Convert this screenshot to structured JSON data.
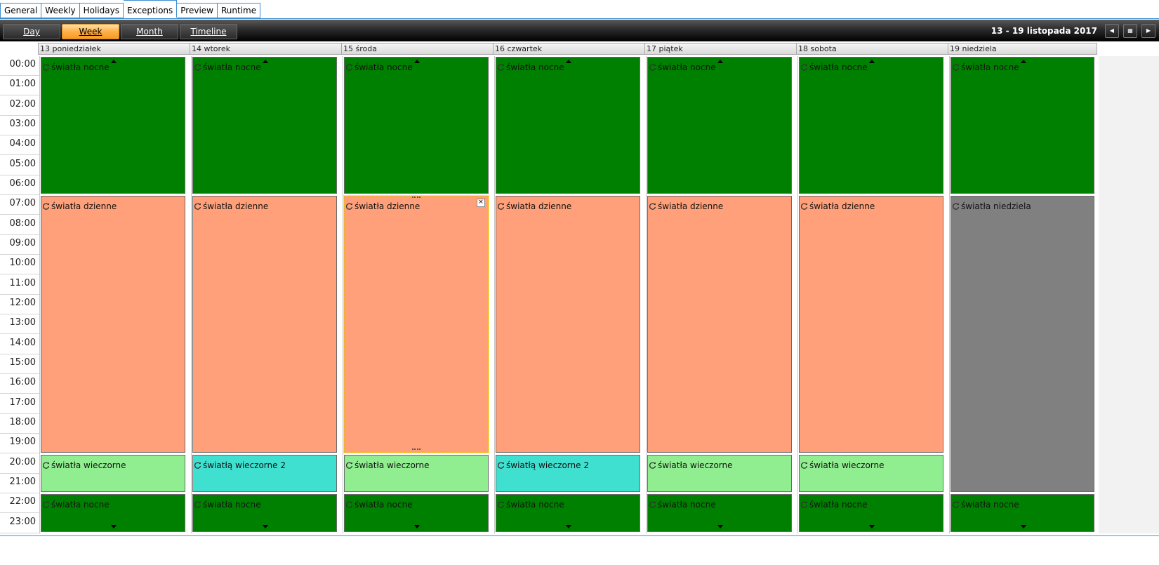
{
  "tabs": [
    "General",
    "Weekly",
    "Holidays",
    "Exceptions",
    "Preview",
    "Runtime"
  ],
  "active_tab": "Exceptions",
  "views": [
    "Day",
    "Week",
    "Month",
    "Timeline"
  ],
  "active_view": "Week",
  "date_range": "13  - 19 listopada 2017",
  "nav": {
    "prev_icon": "triangle-left-icon",
    "calendar_icon": "calendar-grid-icon",
    "next_icon": "triangle-right-icon"
  },
  "hours": [
    "00:00",
    "01:00",
    "02:00",
    "03:00",
    "04:00",
    "05:00",
    "06:00",
    "07:00",
    "08:00",
    "09:00",
    "10:00",
    "11:00",
    "12:00",
    "13:00",
    "14:00",
    "15:00",
    "16:00",
    "17:00",
    "18:00",
    "19:00",
    "20:00",
    "21:00",
    "22:00",
    "23:00"
  ],
  "days": [
    "13 poniedziałek",
    "14 wtorek",
    "15 środa",
    "16 czwartek",
    "17 piątek",
    "18 sobota",
    "19 niedziela"
  ],
  "colors": {
    "night": "#008000",
    "day": "#ffa07a",
    "evening": "#90ee90",
    "evening2": "#40e0d0",
    "sunday": "#808080",
    "toolbar_active": "#ffb04a",
    "tab_border": "#3c8fd1"
  },
  "appointments": [
    {
      "day": 0,
      "start": 0,
      "end": 7,
      "title": "światła nocne",
      "color": "night",
      "cont_up": true
    },
    {
      "day": 0,
      "start": 7,
      "end": 20,
      "title": "światła dzienne",
      "color": "day"
    },
    {
      "day": 0,
      "start": 20,
      "end": 22,
      "title": "światła wieczorne",
      "color": "evening"
    },
    {
      "day": 0,
      "start": 22,
      "end": 24,
      "title": "światła nocne",
      "color": "night",
      "cont_down": true
    },
    {
      "day": 1,
      "start": 0,
      "end": 7,
      "title": "światła nocne",
      "color": "night",
      "cont_up": true
    },
    {
      "day": 1,
      "start": 7,
      "end": 20,
      "title": "światła dzienne",
      "color": "day"
    },
    {
      "day": 1,
      "start": 20,
      "end": 22,
      "title": "światłą wieczorne 2",
      "color": "evening2"
    },
    {
      "day": 1,
      "start": 22,
      "end": 24,
      "title": "światła nocne",
      "color": "night",
      "cont_down": true
    },
    {
      "day": 2,
      "start": 0,
      "end": 7,
      "title": "światła nocne",
      "color": "night",
      "cont_up": true
    },
    {
      "day": 2,
      "start": 7,
      "end": 20,
      "title": "światła dzienne",
      "color": "day",
      "selected": true
    },
    {
      "day": 2,
      "start": 20,
      "end": 22,
      "title": "światła wieczorne",
      "color": "evening"
    },
    {
      "day": 2,
      "start": 22,
      "end": 24,
      "title": "światła nocne",
      "color": "night",
      "cont_down": true
    },
    {
      "day": 3,
      "start": 0,
      "end": 7,
      "title": "światła nocne",
      "color": "night",
      "cont_up": true
    },
    {
      "day": 3,
      "start": 7,
      "end": 20,
      "title": "światła dzienne",
      "color": "day"
    },
    {
      "day": 3,
      "start": 20,
      "end": 22,
      "title": "światłą wieczorne 2",
      "color": "evening2"
    },
    {
      "day": 3,
      "start": 22,
      "end": 24,
      "title": "światła nocne",
      "color": "night",
      "cont_down": true
    },
    {
      "day": 4,
      "start": 0,
      "end": 7,
      "title": "światła nocne",
      "color": "night",
      "cont_up": true
    },
    {
      "day": 4,
      "start": 7,
      "end": 20,
      "title": "światła dzienne",
      "color": "day"
    },
    {
      "day": 4,
      "start": 20,
      "end": 22,
      "title": "światła wieczorne",
      "color": "evening"
    },
    {
      "day": 4,
      "start": 22,
      "end": 24,
      "title": "światła nocne",
      "color": "night",
      "cont_down": true
    },
    {
      "day": 5,
      "start": 0,
      "end": 7,
      "title": "światła nocne",
      "color": "night",
      "cont_up": true
    },
    {
      "day": 5,
      "start": 7,
      "end": 20,
      "title": "światła dzienne",
      "color": "day"
    },
    {
      "day": 5,
      "start": 20,
      "end": 22,
      "title": "światła wieczorne",
      "color": "evening"
    },
    {
      "day": 5,
      "start": 22,
      "end": 24,
      "title": "światła nocne",
      "color": "night",
      "cont_down": true
    },
    {
      "day": 6,
      "start": 0,
      "end": 7,
      "title": "światła nocne",
      "color": "night",
      "cont_up": true
    },
    {
      "day": 6,
      "start": 7,
      "end": 22,
      "title": "światła niedziela",
      "color": "sunday"
    },
    {
      "day": 6,
      "start": 22,
      "end": 24,
      "title": "światła nocne",
      "color": "night",
      "cont_down": true
    }
  ]
}
